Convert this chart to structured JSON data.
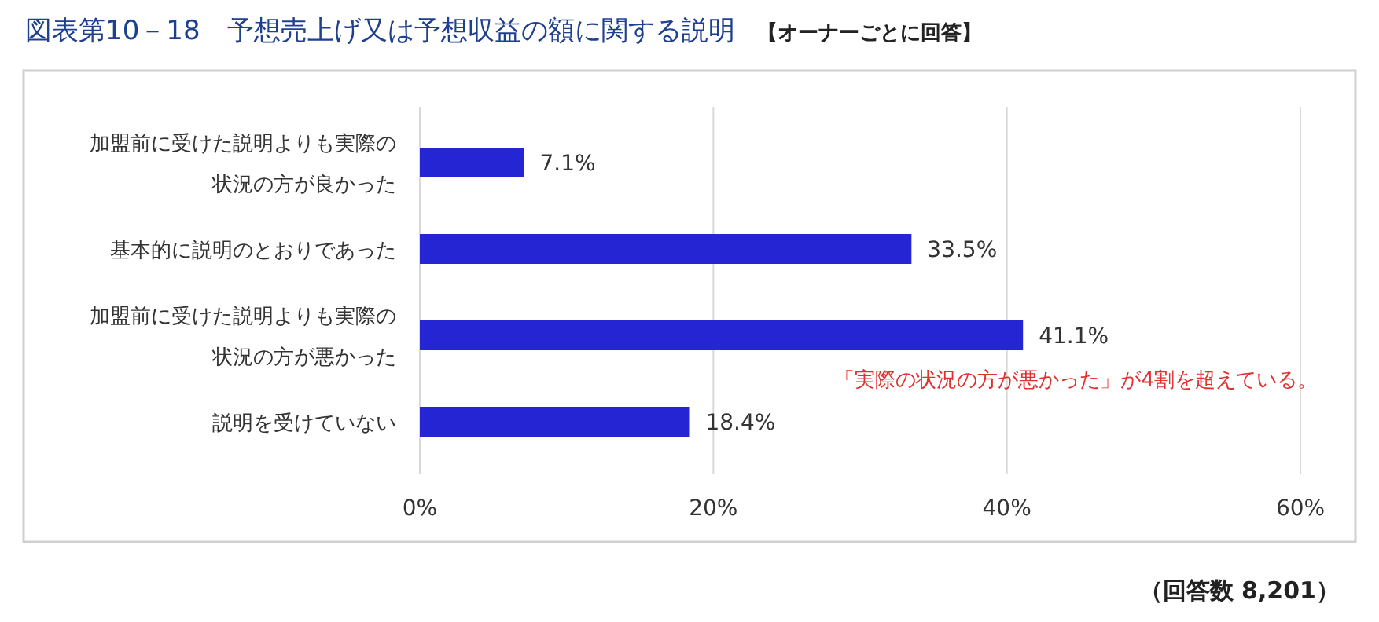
{
  "chart_data": {
    "type": "bar",
    "orientation": "horizontal",
    "title": "図表第10－18　予想売上げ又は予想収益の額に関する説明",
    "subtitle": "【オーナーごとに回答】",
    "categories": [
      "加盟前に受けた説明よりも実際の状況の方が良かった",
      "基本的に説明のとおりであった",
      "加盟前に受けた説明よりも実際の状況の方が悪かった",
      "説明を受けていない"
    ],
    "values": [
      7.1,
      33.5,
      41.1,
      18.4
    ],
    "value_labels": [
      "7.1%",
      "33.5%",
      "41.1%",
      "18.4%"
    ],
    "color": "#2525d4",
    "xlim": [
      0,
      60
    ],
    "xticks": [
      {
        "value": 0,
        "label": "0%"
      },
      {
        "value": 20,
        "label": "20%"
      },
      {
        "value": 40,
        "label": "40%"
      },
      {
        "value": 60,
        "label": "60%"
      }
    ],
    "grid": "x",
    "annotations": [
      "「実際の状況の方が悪かった」が4割を超えている。",
      "（回答数 8,201）"
    ]
  }
}
